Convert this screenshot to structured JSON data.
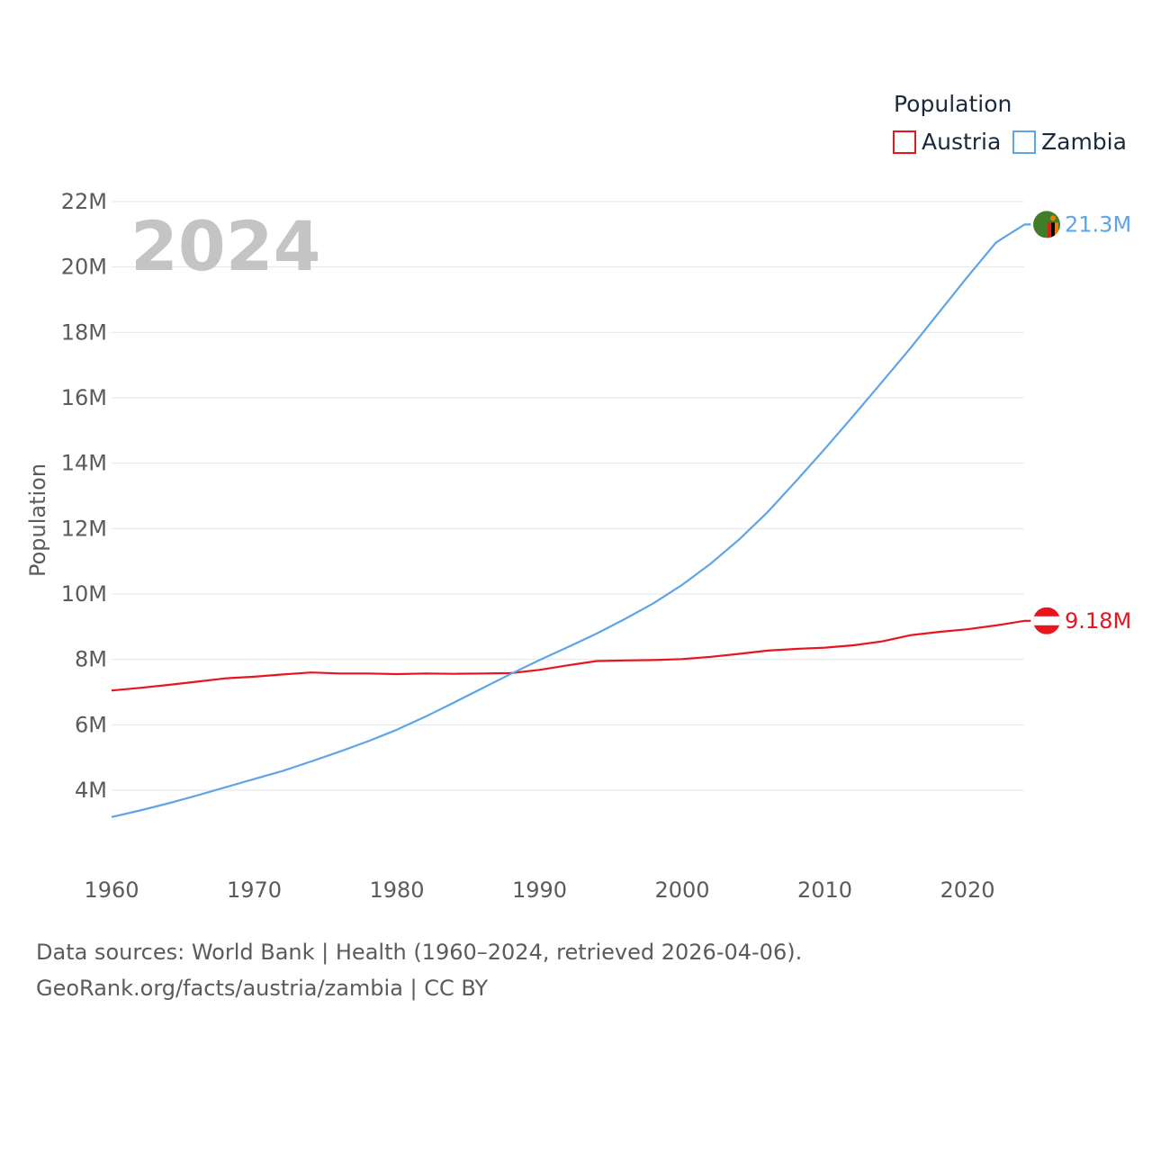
{
  "chart_data": {
    "type": "line",
    "year_watermark": "2024",
    "ylabel": "Population",
    "xlabel": "",
    "xlim": [
      1960,
      2024
    ],
    "ylim": [
      2000000,
      22000000
    ],
    "y_ticks": [
      4000000,
      6000000,
      8000000,
      10000000,
      12000000,
      14000000,
      16000000,
      18000000,
      20000000,
      22000000
    ],
    "y_tick_labels": [
      "4M",
      "6M",
      "8M",
      "10M",
      "12M",
      "14M",
      "16M",
      "18M",
      "20M",
      "22M"
    ],
    "x_ticks": [
      1960,
      1970,
      1980,
      1990,
      2000,
      2010,
      2020
    ],
    "x_tick_labels": [
      "1960",
      "1970",
      "1980",
      "1990",
      "2000",
      "2010",
      "2020"
    ],
    "legend": {
      "title": "Population",
      "entries": [
        "Austria",
        "Zambia"
      ],
      "position": "top-right"
    },
    "series": [
      {
        "name": "Austria",
        "color": "#e8141e",
        "end_label": "9.18M",
        "flag": "austria-flag-icon",
        "x": [
          1960,
          1962,
          1964,
          1966,
          1968,
          1970,
          1972,
          1974,
          1976,
          1978,
          1980,
          1982,
          1984,
          1986,
          1988,
          1990,
          1992,
          1994,
          1996,
          1998,
          2000,
          2002,
          2004,
          2006,
          2008,
          2010,
          2012,
          2014,
          2016,
          2018,
          2020,
          2022,
          2024
        ],
        "values": [
          7050000,
          7130000,
          7220000,
          7320000,
          7420000,
          7470000,
          7540000,
          7600000,
          7570000,
          7570000,
          7550000,
          7570000,
          7560000,
          7570000,
          7580000,
          7680000,
          7820000,
          7950000,
          7970000,
          7980000,
          8010000,
          8080000,
          8170000,
          8270000,
          8320000,
          8360000,
          8430000,
          8550000,
          8740000,
          8840000,
          8920000,
          9040000,
          9180000
        ]
      },
      {
        "name": "Zambia",
        "color": "#5ea5e6",
        "end_label": "21.3M",
        "flag": "zambia-flag-icon",
        "x": [
          1960,
          1962,
          1964,
          1966,
          1968,
          1970,
          1972,
          1974,
          1976,
          1978,
          1980,
          1982,
          1984,
          1986,
          1988,
          1990,
          1992,
          1994,
          1996,
          1998,
          2000,
          2002,
          2004,
          2006,
          2008,
          2010,
          2012,
          2014,
          2016,
          2018,
          2020,
          2022,
          2024
        ],
        "values": [
          3180000,
          3380000,
          3600000,
          3840000,
          4090000,
          4340000,
          4590000,
          4880000,
          5180000,
          5500000,
          5850000,
          6250000,
          6680000,
          7120000,
          7560000,
          7980000,
          8380000,
          8790000,
          9240000,
          9720000,
          10280000,
          10930000,
          11670000,
          12510000,
          13460000,
          14440000,
          15450000,
          16480000,
          17520000,
          18610000,
          19700000,
          20750000,
          21300000
        ]
      }
    ]
  },
  "footer": {
    "line1": "Data sources: World Bank | Health (1960–2024, retrieved 2026-04-06).",
    "line2": "GeoRank.org/facts/austria/zambia | CC BY"
  }
}
